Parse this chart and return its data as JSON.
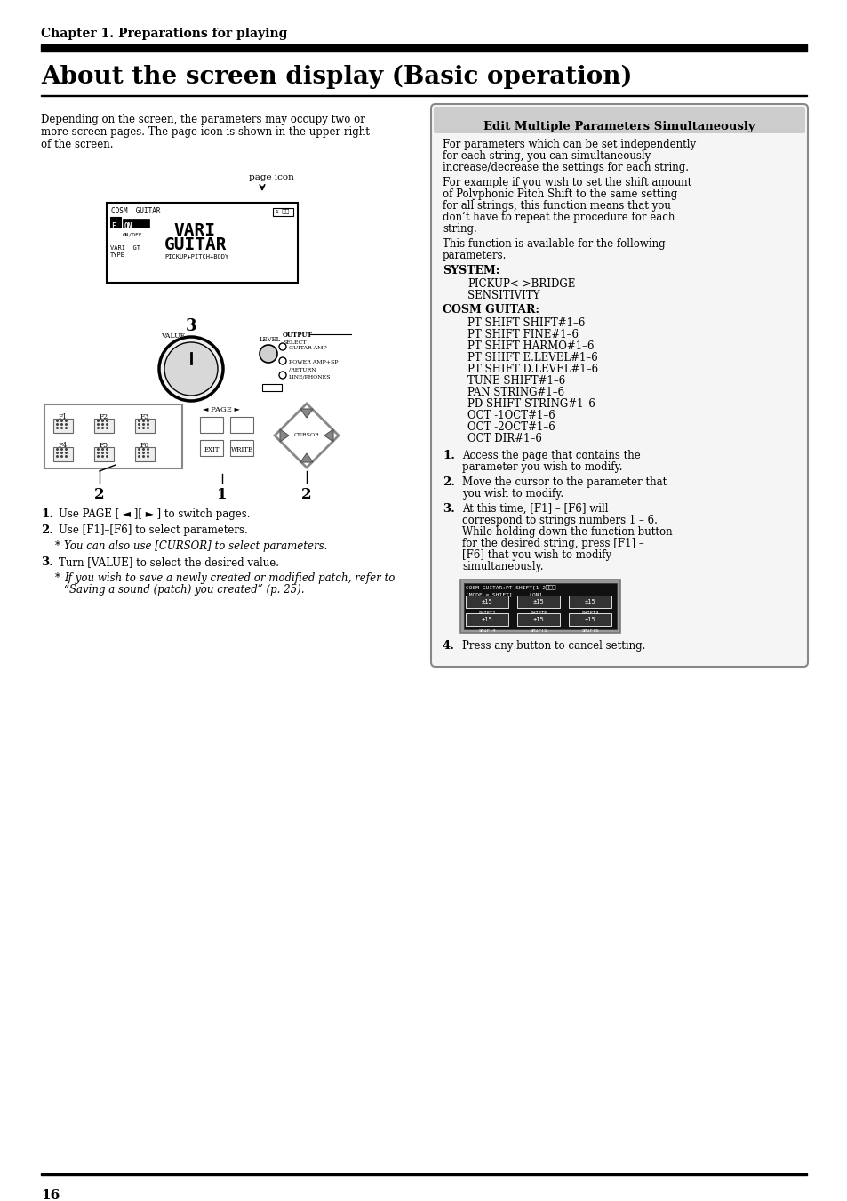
{
  "bg_color": "#ffffff",
  "chapter_text": "Chapter 1. Preparations for playing",
  "title_text": "About the screen display (Basic operation)",
  "body_intro": "Depending on the screen, the parameters may occupy two or\nmore screen pages. The page icon is shown in the upper right\nof the screen.",
  "box_title": "Edit Multiple Parameters Simultaneously",
  "box_para1": "For parameters which can be set independently for each string, you can simultaneously increase/decrease the settings for each string.",
  "box_para2": "For example if you wish to set the shift amount of Polyphonic Pitch Shift to the same setting for all strings, this function means that you don’t have to repeat the procedure for each string.",
  "box_para3": "This function is available for the following parameters.",
  "system_label": "SYSTEM:",
  "system_items": [
    "PICKUP<->BRIDGE",
    "SENSITIVITY"
  ],
  "cosm_label": "COSM GUITAR:",
  "cosm_items": [
    "PT SHIFT SHIFT#1–6",
    "PT SHIFT FINE#1–6",
    "PT SHIFT HARMO#1–6",
    "PT SHIFT E.LEVEL#1–6",
    "PT SHIFT D.LEVEL#1–6",
    "TUNE SHIFT#1–6",
    "PAN STRING#1–6",
    "PD SHIFT STRING#1–6",
    "OCT -1OCT#1–6",
    "OCT -2OCT#1–6",
    "OCT DIR#1–6"
  ],
  "footer_number": "16"
}
